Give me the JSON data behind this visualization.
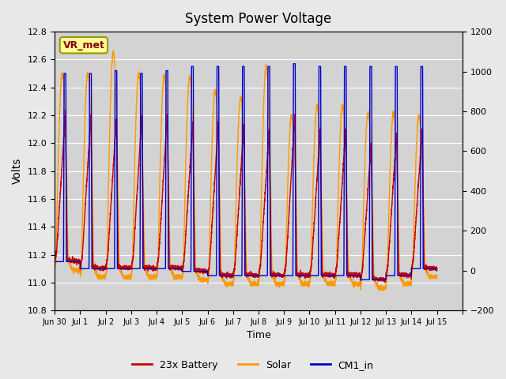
{
  "title": "System Power Voltage",
  "xlabel": "Time",
  "ylabel": "Volts",
  "left_ylim": [
    10.8,
    12.8
  ],
  "right_ylim": [
    -200,
    1200
  ],
  "left_yticks": [
    10.8,
    11.0,
    11.2,
    11.4,
    11.6,
    11.8,
    12.0,
    12.2,
    12.4,
    12.6,
    12.8
  ],
  "right_yticks": [
    -200,
    0,
    200,
    400,
    600,
    800,
    1000,
    1200
  ],
  "xtick_positions": [
    -1,
    0,
    1,
    2,
    3,
    4,
    5,
    6,
    7,
    8,
    9,
    10,
    11,
    12,
    13,
    14,
    15
  ],
  "xtick_labels": [
    "Jun 30",
    "Jul 1",
    "Jul 2",
    "Jul 3",
    "Jul 4",
    "Jul 5",
    "Jul 6",
    "Jul 7",
    "Jul 8",
    "Jul 9",
    "Jul 10",
    "Jul 11",
    "Jul 12",
    "Jul 13",
    "Jul 14",
    "Jul 15",
    ""
  ],
  "color_battery": "#cc0000",
  "color_solar": "#ff9900",
  "color_cm1": "#0000cc",
  "legend_labels": [
    "23x Battery",
    "Solar",
    "CM1_in"
  ],
  "annotation_text": "VR_met",
  "annotation_color": "#8b0000",
  "bg_color": "#e8e8e8",
  "plot_bg_color": "#d3d3d3",
  "grid_color": "#ffffff",
  "figsize": [
    6.4,
    4.8
  ],
  "dpi": 100
}
